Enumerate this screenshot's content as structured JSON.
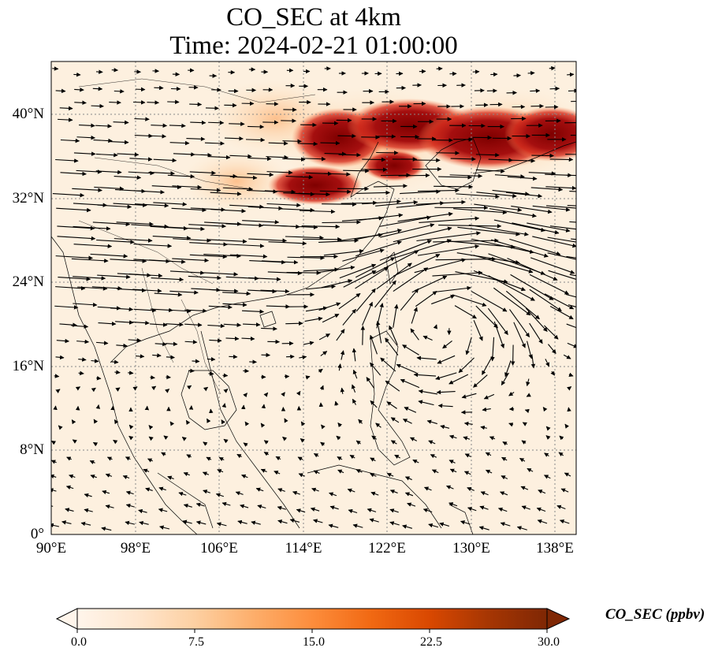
{
  "title": {
    "line1": "CO_SEC at 4km",
    "line2": "Time: 2024-02-21 01:00:00"
  },
  "map": {
    "lon_range": [
      90,
      140
    ],
    "lat_range": [
      0,
      45
    ],
    "gridlines": true,
    "gridline_style": "dotted",
    "lat_ticks": [
      "0°",
      "8°N",
      "16°N",
      "24°N",
      "32°N",
      "40°N"
    ],
    "lon_ticks": [
      "90°E",
      "98°E",
      "106°E",
      "114°E",
      "122°E",
      "130°E",
      "138°E"
    ],
    "field": "CO_SEC concentration (filled contours)",
    "overlay": "wind vectors",
    "high_region": "North China Plain, Yellow Sea, Korea, southern Japan (about 32°N–42°N, 108°E–140°E)",
    "circulation_center": [
      127,
      22
    ]
  },
  "colorbar": {
    "label": "CO_SEC (ppbv)",
    "ticks": [
      "0.0",
      "7.5",
      "15.0",
      "22.5",
      "30.0"
    ],
    "min": 0,
    "max": 30,
    "extend": "both",
    "colormap": [
      "#fff5eb",
      "#fee6ce",
      "#fdd0a2",
      "#fdae6b",
      "#fd8d3c",
      "#f16913",
      "#d94801",
      "#a63603",
      "#7f2704"
    ]
  }
}
